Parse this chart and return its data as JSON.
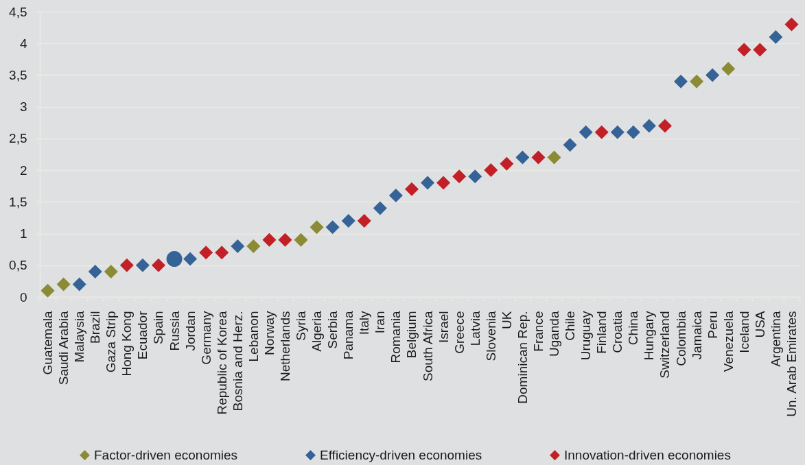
{
  "chart_data": {
    "type": "scatter",
    "categories": [
      "Guatemala",
      "Saudi Arabia",
      "Malaysia",
      "Brazil",
      "Gaza Strip",
      "Hong Kong",
      "Ecuador",
      "Spain",
      "Russia",
      "Jordan",
      "Germany",
      "Republic of Korea",
      "Bosnia and Herz.",
      "Lebanon",
      "Norway",
      "Netherlands",
      "Syria",
      "Algeria",
      "Serbia",
      "Panama",
      "Italy",
      "Iran",
      "Romania",
      "Belgium",
      "South Africa",
      "Israel",
      "Greece",
      "Latvia",
      "Slovenia",
      "UK",
      "Dominican Rep.",
      "France",
      "Uganda",
      "Chile",
      "Uruguay",
      "Finland",
      "Croatia",
      "China",
      "Hungary",
      "Switzerland",
      "Colombia",
      "Jamaica",
      "Peru",
      "Venezuela",
      "Iceland",
      "USA",
      "Argentina",
      "Un. Arab Emirates"
    ],
    "series": [
      {
        "name": "Factor-driven economies",
        "color": "#8b8a35",
        "values": [
          0.1,
          0.2,
          null,
          null,
          0.4,
          null,
          null,
          null,
          null,
          null,
          null,
          null,
          null,
          0.8,
          null,
          null,
          0.9,
          1.1,
          null,
          null,
          null,
          null,
          null,
          null,
          null,
          null,
          null,
          null,
          null,
          null,
          null,
          null,
          2.2,
          null,
          null,
          null,
          null,
          null,
          null,
          null,
          null,
          3.4,
          null,
          3.6,
          null,
          null,
          null,
          null
        ]
      },
      {
        "name": "Efficiency-driven economies",
        "color": "#366397",
        "values": [
          null,
          null,
          0.2,
          0.4,
          null,
          null,
          0.5,
          null,
          null,
          0.6,
          null,
          null,
          0.8,
          null,
          null,
          null,
          null,
          null,
          1.1,
          1.2,
          null,
          1.4,
          1.6,
          null,
          1.8,
          null,
          null,
          1.9,
          null,
          null,
          2.2,
          null,
          null,
          2.4,
          2.6,
          null,
          2.6,
          2.6,
          2.7,
          null,
          3.4,
          null,
          3.5,
          null,
          null,
          null,
          4.1,
          null
        ]
      },
      {
        "name": "Innovation-driven economies",
        "color": "#c22026",
        "values": [
          null,
          null,
          null,
          null,
          null,
          0.5,
          null,
          0.5,
          null,
          null,
          0.7,
          0.7,
          null,
          null,
          0.9,
          0.9,
          null,
          null,
          null,
          null,
          1.2,
          null,
          null,
          1.7,
          null,
          1.8,
          1.9,
          null,
          2,
          2.1,
          null,
          2.2,
          null,
          null,
          null,
          2.6,
          null,
          null,
          null,
          2.7,
          null,
          null,
          null,
          null,
          3.9,
          3.9,
          null,
          4.3
        ]
      },
      {
        "color": "#366397",
        "marker": "circle",
        "values": [
          null,
          null,
          null,
          null,
          null,
          null,
          null,
          null,
          0.6,
          null,
          null,
          null,
          null,
          null,
          null,
          null,
          null,
          null,
          null,
          null,
          null,
          null,
          null,
          null,
          null,
          null,
          null,
          null,
          null,
          null,
          null,
          null,
          null,
          null,
          null,
          null,
          null,
          null,
          null,
          null,
          null,
          null,
          null,
          null,
          null,
          null,
          null,
          null
        ]
      }
    ],
    "ylim": [
      0,
      4.5
    ],
    "yticks": [
      0,
      {
        "value": 0.5,
        "label": "0,5"
      },
      1,
      {
        "value": 1.5,
        "label": "1,5"
      },
      2,
      {
        "value": 2.5,
        "label": "2,5"
      },
      3,
      {
        "value": 3.5,
        "label": "3,5"
      },
      4,
      {
        "value": 4.5,
        "label": "4,5"
      }
    ],
    "grid": "y",
    "legend": "bottom",
    "marker": "diamond"
  }
}
